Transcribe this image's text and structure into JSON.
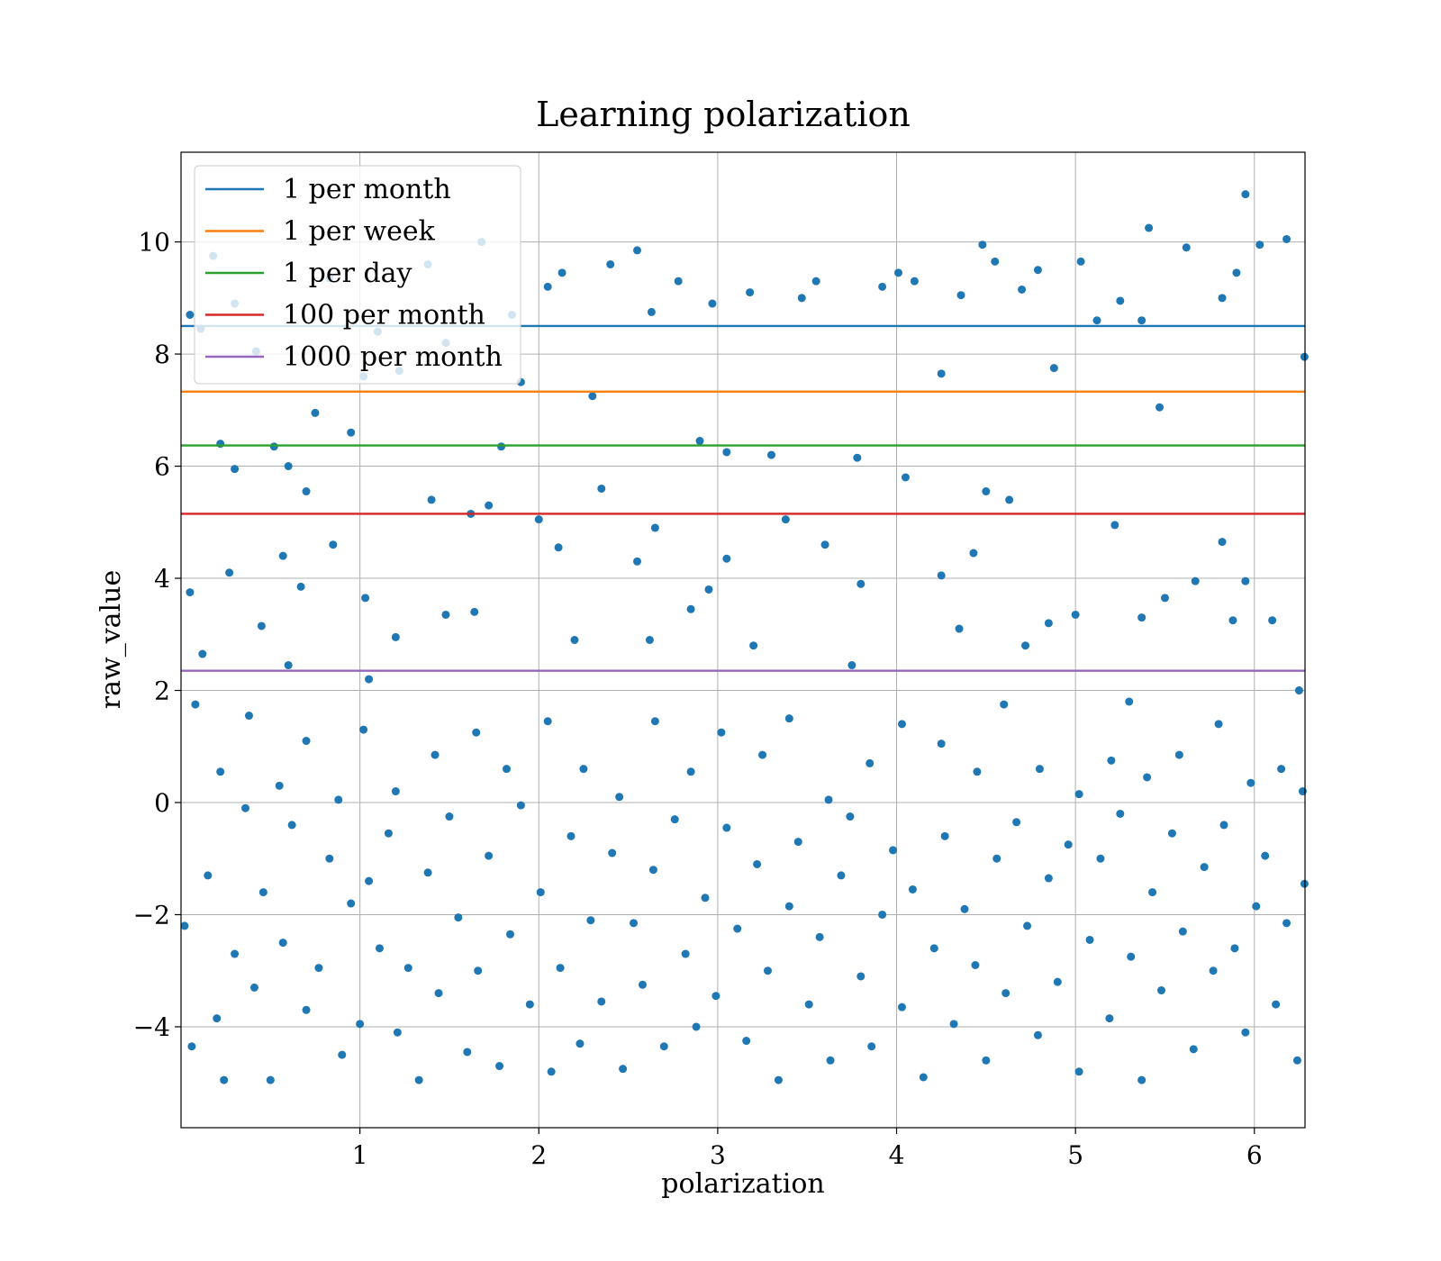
{
  "chart_data": {
    "type": "scatter",
    "title": "Learning polarization",
    "xlabel": "polarization",
    "ylabel": "raw_value",
    "xlim": [
      0,
      6.283
    ],
    "ylim": [
      -5.8,
      11.6
    ],
    "x_ticks": [
      1,
      2,
      3,
      4,
      5,
      6
    ],
    "y_ticks": [
      -4,
      -2,
      0,
      2,
      4,
      6,
      8,
      10
    ],
    "y_tick_labels": [
      "−4",
      "−2",
      "0",
      "2",
      "4",
      "6",
      "8",
      "10"
    ],
    "grid": true,
    "legend_position": "top-left",
    "scatter_color": "#1f77b4",
    "scatter_sample": [
      {
        "x": 0.05,
        "y": 8.7
      },
      {
        "x": 0.11,
        "y": 8.45
      },
      {
        "x": 0.18,
        "y": 9.75
      },
      {
        "x": 0.22,
        "y": 6.4
      },
      {
        "x": 0.3,
        "y": 8.9
      },
      {
        "x": 0.42,
        "y": 8.05
      },
      {
        "x": 0.52,
        "y": 6.35
      },
      {
        "x": 0.6,
        "y": 6.0
      },
      {
        "x": 0.75,
        "y": 6.95
      },
      {
        "x": 0.83,
        "y": 9.35
      },
      {
        "x": 0.95,
        "y": 6.6
      },
      {
        "x": 1.02,
        "y": 7.6
      },
      {
        "x": 1.1,
        "y": 8.4
      },
      {
        "x": 1.22,
        "y": 7.7
      },
      {
        "x": 1.38,
        "y": 9.6
      },
      {
        "x": 1.48,
        "y": 8.2
      },
      {
        "x": 1.68,
        "y": 10.0
      },
      {
        "x": 1.79,
        "y": 6.35
      },
      {
        "x": 1.85,
        "y": 8.7
      },
      {
        "x": 1.9,
        "y": 7.5
      },
      {
        "x": 2.05,
        "y": 9.2
      },
      {
        "x": 2.13,
        "y": 9.45
      },
      {
        "x": 2.3,
        "y": 7.25
      },
      {
        "x": 2.4,
        "y": 9.6
      },
      {
        "x": 2.55,
        "y": 9.85
      },
      {
        "x": 2.63,
        "y": 8.75
      },
      {
        "x": 2.78,
        "y": 9.3
      },
      {
        "x": 2.9,
        "y": 6.45
      },
      {
        "x": 2.97,
        "y": 8.9
      },
      {
        "x": 3.05,
        "y": 6.25
      },
      {
        "x": 3.18,
        "y": 9.1
      },
      {
        "x": 3.3,
        "y": 6.2
      },
      {
        "x": 3.47,
        "y": 9.0
      },
      {
        "x": 3.55,
        "y": 9.3
      },
      {
        "x": 3.78,
        "y": 6.15
      },
      {
        "x": 3.92,
        "y": 9.2
      },
      {
        "x": 4.01,
        "y": 9.45
      },
      {
        "x": 4.1,
        "y": 9.3
      },
      {
        "x": 4.25,
        "y": 7.65
      },
      {
        "x": 4.36,
        "y": 9.05
      },
      {
        "x": 4.48,
        "y": 9.95
      },
      {
        "x": 4.55,
        "y": 9.65
      },
      {
        "x": 4.7,
        "y": 9.15
      },
      {
        "x": 4.79,
        "y": 9.5
      },
      {
        "x": 4.88,
        "y": 7.75
      },
      {
        "x": 5.03,
        "y": 9.65
      },
      {
        "x": 5.12,
        "y": 8.6
      },
      {
        "x": 5.25,
        "y": 8.95
      },
      {
        "x": 5.37,
        "y": 8.6
      },
      {
        "x": 5.41,
        "y": 10.25
      },
      {
        "x": 5.47,
        "y": 7.05
      },
      {
        "x": 5.62,
        "y": 9.9
      },
      {
        "x": 5.82,
        "y": 9.0
      },
      {
        "x": 5.9,
        "y": 9.45
      },
      {
        "x": 5.95,
        "y": 10.85
      },
      {
        "x": 6.03,
        "y": 9.95
      },
      {
        "x": 6.18,
        "y": 10.05
      },
      {
        "x": 6.28,
        "y": 7.95
      },
      {
        "x": 0.05,
        "y": 3.75
      },
      {
        "x": 0.12,
        "y": 2.65
      },
      {
        "x": 0.27,
        "y": 4.1
      },
      {
        "x": 0.45,
        "y": 3.15
      },
      {
        "x": 0.57,
        "y": 4.4
      },
      {
        "x": 0.67,
        "y": 3.85
      },
      {
        "x": 0.85,
        "y": 4.6
      },
      {
        "x": 1.03,
        "y": 3.65
      },
      {
        "x": 1.2,
        "y": 2.95
      },
      {
        "x": 1.4,
        "y": 5.4
      },
      {
        "x": 1.48,
        "y": 3.35
      },
      {
        "x": 1.64,
        "y": 3.4
      },
      {
        "x": 1.72,
        "y": 5.3
      },
      {
        "x": 2.0,
        "y": 5.05
      },
      {
        "x": 2.11,
        "y": 4.55
      },
      {
        "x": 2.2,
        "y": 2.9
      },
      {
        "x": 2.35,
        "y": 5.6
      },
      {
        "x": 2.55,
        "y": 4.3
      },
      {
        "x": 2.65,
        "y": 4.9
      },
      {
        "x": 2.85,
        "y": 3.45
      },
      {
        "x": 2.95,
        "y": 3.8
      },
      {
        "x": 3.05,
        "y": 4.35
      },
      {
        "x": 3.38,
        "y": 5.05
      },
      {
        "x": 3.6,
        "y": 4.6
      },
      {
        "x": 3.8,
        "y": 3.9
      },
      {
        "x": 4.05,
        "y": 5.8
      },
      {
        "x": 4.25,
        "y": 4.05
      },
      {
        "x": 4.43,
        "y": 4.45
      },
      {
        "x": 4.5,
        "y": 5.55
      },
      {
        "x": 4.63,
        "y": 5.4
      },
      {
        "x": 4.85,
        "y": 3.2
      },
      {
        "x": 5.0,
        "y": 3.35
      },
      {
        "x": 5.22,
        "y": 4.95
      },
      {
        "x": 5.37,
        "y": 3.3
      },
      {
        "x": 5.5,
        "y": 3.65
      },
      {
        "x": 5.67,
        "y": 3.95
      },
      {
        "x": 5.82,
        "y": 4.65
      },
      {
        "x": 5.95,
        "y": 3.95
      },
      {
        "x": 6.1,
        "y": 3.25
      },
      {
        "x": 6.25,
        "y": 2.0
      },
      {
        "x": 0.02,
        "y": -2.2
      },
      {
        "x": 0.06,
        "y": -4.35
      },
      {
        "x": 0.15,
        "y": -1.3
      },
      {
        "x": 0.2,
        "y": -3.85
      },
      {
        "x": 0.24,
        "y": -4.95
      },
      {
        "x": 0.3,
        "y": -2.7
      },
      {
        "x": 0.36,
        "y": -0.1
      },
      {
        "x": 0.41,
        "y": -3.3
      },
      {
        "x": 0.46,
        "y": -1.6
      },
      {
        "x": 0.5,
        "y": -4.95
      },
      {
        "x": 0.57,
        "y": -2.5
      },
      {
        "x": 0.62,
        "y": -0.4
      },
      {
        "x": 0.7,
        "y": -3.7
      },
      {
        "x": 0.77,
        "y": -2.95
      },
      {
        "x": 0.83,
        "y": -1.0
      },
      {
        "x": 0.9,
        "y": -4.5
      },
      {
        "x": 0.95,
        "y": -1.8
      },
      {
        "x": 1.0,
        "y": -3.95
      },
      {
        "x": 1.05,
        "y": -1.4
      },
      {
        "x": 1.11,
        "y": -2.6
      },
      {
        "x": 1.16,
        "y": -0.55
      },
      {
        "x": 1.21,
        "y": -4.1
      },
      {
        "x": 1.27,
        "y": -2.95
      },
      {
        "x": 1.33,
        "y": -4.95
      },
      {
        "x": 1.38,
        "y": -1.25
      },
      {
        "x": 1.44,
        "y": -3.4
      },
      {
        "x": 1.5,
        "y": -0.25
      },
      {
        "x": 1.55,
        "y": -2.05
      },
      {
        "x": 1.6,
        "y": -4.45
      },
      {
        "x": 1.66,
        "y": -3.0
      },
      {
        "x": 1.72,
        "y": -0.95
      },
      {
        "x": 1.78,
        "y": -4.7
      },
      {
        "x": 1.84,
        "y": -2.35
      },
      {
        "x": 1.9,
        "y": -0.05
      },
      {
        "x": 1.95,
        "y": -3.6
      },
      {
        "x": 2.01,
        "y": -1.6
      },
      {
        "x": 2.07,
        "y": -4.8
      },
      {
        "x": 2.12,
        "y": -2.95
      },
      {
        "x": 2.18,
        "y": -0.6
      },
      {
        "x": 2.23,
        "y": -4.3
      },
      {
        "x": 2.29,
        "y": -2.1
      },
      {
        "x": 2.35,
        "y": -3.55
      },
      {
        "x": 2.41,
        "y": -0.9
      },
      {
        "x": 2.47,
        "y": -4.75
      },
      {
        "x": 2.53,
        "y": -2.15
      },
      {
        "x": 2.58,
        "y": -3.25
      },
      {
        "x": 2.64,
        "y": -1.2
      },
      {
        "x": 2.7,
        "y": -4.35
      },
      {
        "x": 2.76,
        "y": -0.3
      },
      {
        "x": 2.82,
        "y": -2.7
      },
      {
        "x": 2.88,
        "y": -4.0
      },
      {
        "x": 2.93,
        "y": -1.7
      },
      {
        "x": 2.99,
        "y": -3.45
      },
      {
        "x": 3.05,
        "y": -0.45
      },
      {
        "x": 3.11,
        "y": -2.25
      },
      {
        "x": 3.16,
        "y": -4.25
      },
      {
        "x": 3.22,
        "y": -1.1
      },
      {
        "x": 3.28,
        "y": -3.0
      },
      {
        "x": 3.34,
        "y": -4.95
      },
      {
        "x": 3.4,
        "y": -1.85
      },
      {
        "x": 3.45,
        "y": -0.7
      },
      {
        "x": 3.51,
        "y": -3.6
      },
      {
        "x": 3.57,
        "y": -2.4
      },
      {
        "x": 3.63,
        "y": -4.6
      },
      {
        "x": 3.69,
        "y": -1.3
      },
      {
        "x": 3.74,
        "y": -0.25
      },
      {
        "x": 3.8,
        "y": -3.1
      },
      {
        "x": 3.86,
        "y": -4.35
      },
      {
        "x": 3.92,
        "y": -2.0
      },
      {
        "x": 3.98,
        "y": -0.85
      },
      {
        "x": 4.03,
        "y": -3.65
      },
      {
        "x": 4.09,
        "y": -1.55
      },
      {
        "x": 4.15,
        "y": -4.9
      },
      {
        "x": 4.21,
        "y": -2.6
      },
      {
        "x": 4.27,
        "y": -0.6
      },
      {
        "x": 4.32,
        "y": -3.95
      },
      {
        "x": 4.38,
        "y": -1.9
      },
      {
        "x": 4.44,
        "y": -2.9
      },
      {
        "x": 4.5,
        "y": -4.6
      },
      {
        "x": 4.56,
        "y": -1.0
      },
      {
        "x": 4.61,
        "y": -3.4
      },
      {
        "x": 4.67,
        "y": -0.35
      },
      {
        "x": 4.73,
        "y": -2.2
      },
      {
        "x": 4.79,
        "y": -4.15
      },
      {
        "x": 4.85,
        "y": -1.35
      },
      {
        "x": 4.9,
        "y": -3.2
      },
      {
        "x": 4.96,
        "y": -0.75
      },
      {
        "x": 5.02,
        "y": -4.8
      },
      {
        "x": 5.08,
        "y": -2.45
      },
      {
        "x": 5.14,
        "y": -1.0
      },
      {
        "x": 5.19,
        "y": -3.85
      },
      {
        "x": 5.25,
        "y": -0.2
      },
      {
        "x": 5.31,
        "y": -2.75
      },
      {
        "x": 5.37,
        "y": -4.95
      },
      {
        "x": 5.43,
        "y": -1.6
      },
      {
        "x": 5.48,
        "y": -3.35
      },
      {
        "x": 5.54,
        "y": -0.55
      },
      {
        "x": 5.6,
        "y": -2.3
      },
      {
        "x": 5.66,
        "y": -4.4
      },
      {
        "x": 5.72,
        "y": -1.15
      },
      {
        "x": 5.77,
        "y": -3.0
      },
      {
        "x": 5.83,
        "y": -0.4
      },
      {
        "x": 5.89,
        "y": -2.6
      },
      {
        "x": 5.95,
        "y": -4.1
      },
      {
        "x": 6.01,
        "y": -1.85
      },
      {
        "x": 6.06,
        "y": -0.95
      },
      {
        "x": 6.12,
        "y": -3.6
      },
      {
        "x": 6.18,
        "y": -2.15
      },
      {
        "x": 6.24,
        "y": -4.6
      },
      {
        "x": 6.28,
        "y": -1.45
      },
      {
        "x": 0.08,
        "y": 1.75
      },
      {
        "x": 0.22,
        "y": 0.55
      },
      {
        "x": 0.38,
        "y": 1.55
      },
      {
        "x": 0.55,
        "y": 0.3
      },
      {
        "x": 0.7,
        "y": 1.1
      },
      {
        "x": 0.88,
        "y": 0.05
      },
      {
        "x": 1.02,
        "y": 1.3
      },
      {
        "x": 1.2,
        "y": 0.2
      },
      {
        "x": 1.42,
        "y": 0.85
      },
      {
        "x": 1.65,
        "y": 1.25
      },
      {
        "x": 1.82,
        "y": 0.6
      },
      {
        "x": 2.05,
        "y": 1.45
      },
      {
        "x": 2.25,
        "y": 0.6
      },
      {
        "x": 2.45,
        "y": 0.1
      },
      {
        "x": 2.65,
        "y": 1.45
      },
      {
        "x": 2.85,
        "y": 0.55
      },
      {
        "x": 3.02,
        "y": 1.25
      },
      {
        "x": 3.25,
        "y": 0.85
      },
      {
        "x": 3.4,
        "y": 1.5
      },
      {
        "x": 3.62,
        "y": 0.05
      },
      {
        "x": 3.85,
        "y": 0.7
      },
      {
        "x": 4.03,
        "y": 1.4
      },
      {
        "x": 4.25,
        "y": 1.05
      },
      {
        "x": 4.45,
        "y": 0.55
      },
      {
        "x": 4.6,
        "y": 1.75
      },
      {
        "x": 4.8,
        "y": 0.6
      },
      {
        "x": 5.02,
        "y": 0.15
      },
      {
        "x": 5.2,
        "y": 0.75
      },
      {
        "x": 5.4,
        "y": 0.45
      },
      {
        "x": 5.58,
        "y": 0.85
      },
      {
        "x": 5.8,
        "y": 1.4
      },
      {
        "x": 5.98,
        "y": 0.35
      },
      {
        "x": 6.15,
        "y": 0.6
      },
      {
        "x": 6.27,
        "y": 0.2
      },
      {
        "x": 0.3,
        "y": 5.95
      },
      {
        "x": 0.7,
        "y": 5.55
      },
      {
        "x": 1.05,
        "y": 2.2
      },
      {
        "x": 1.62,
        "y": 5.15
      },
      {
        "x": 2.62,
        "y": 2.9
      },
      {
        "x": 3.2,
        "y": 2.8
      },
      {
        "x": 3.75,
        "y": 2.45
      },
      {
        "x": 4.35,
        "y": 3.1
      },
      {
        "x": 4.72,
        "y": 2.8
      },
      {
        "x": 5.3,
        "y": 1.8
      },
      {
        "x": 5.88,
        "y": 3.25
      },
      {
        "x": 0.6,
        "y": 2.45
      }
    ],
    "series": [
      {
        "name": "1 per month",
        "type": "hline",
        "y": 8.5,
        "color": "#1f77b4"
      },
      {
        "name": "1 per week",
        "type": "hline",
        "y": 7.33,
        "color": "#ff7f0e"
      },
      {
        "name": "1 per day",
        "type": "hline",
        "y": 6.37,
        "color": "#2ca02c"
      },
      {
        "name": "100 per month",
        "type": "hline",
        "y": 5.15,
        "color": "#d62728"
      },
      {
        "name": "1000 per month",
        "type": "hline",
        "y": 2.35,
        "color": "#9467bd"
      }
    ]
  }
}
